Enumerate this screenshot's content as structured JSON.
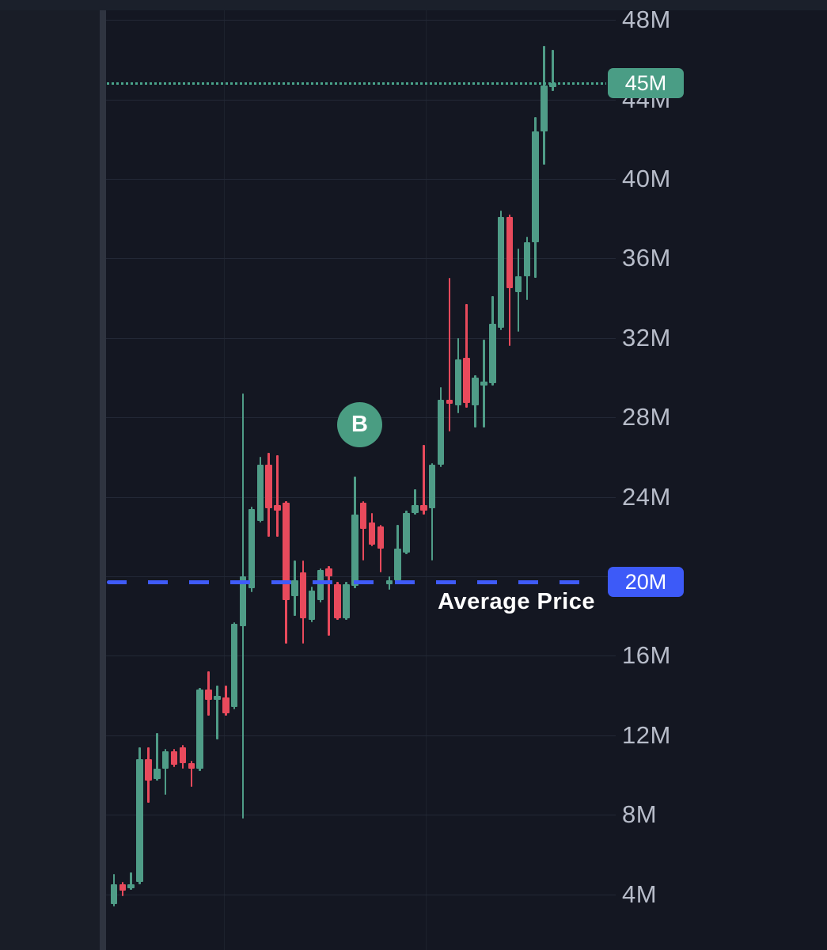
{
  "chart": {
    "colors": {
      "background": "#141722",
      "top_strip": "#1b202b",
      "axis_separator": "#2f3440",
      "grid": "#232836",
      "axis_text": "#b7bcc9",
      "up_candle": "#4f9c87",
      "down_candle": "#e84a5c",
      "target_line": "#4aa58c",
      "target_badge": "#4a9d85",
      "average_line": "#3f5bf9",
      "average_badge": "#3d5af8",
      "buy_marker": "#4a9d82"
    },
    "target_price": {
      "label": "45M",
      "value": 44.8,
      "line_style": "dotted"
    },
    "average_price": {
      "label": "20M",
      "value": 19.7,
      "caption": "Average Price",
      "line_style": "dashed"
    },
    "buy_marker": {
      "label": "B",
      "value": 27.6,
      "candle_index": 28.6
    }
  },
  "chart_data": {
    "type": "candlestick",
    "unit": "M",
    "ylim": [
      1.2,
      49.0
    ],
    "grid": "on",
    "legend": "none",
    "y_ticks": [
      {
        "label": "48M",
        "value": 48
      },
      {
        "label": "44M",
        "value": 44
      },
      {
        "label": "40M",
        "value": 40
      },
      {
        "label": "36M",
        "value": 36
      },
      {
        "label": "32M",
        "value": 32
      },
      {
        "label": "28M",
        "value": 28
      },
      {
        "label": "24M",
        "value": 24
      },
      {
        "label": "20M",
        "value": 20,
        "shown_as": "badge"
      },
      {
        "label": "16M",
        "value": 16
      },
      {
        "label": "12M",
        "value": 12
      },
      {
        "label": "8M",
        "value": 8
      },
      {
        "label": "4M",
        "value": 4
      }
    ],
    "vertical_grid_x": [
      283,
      538
    ],
    "annotations": [
      {
        "type": "hline",
        "value": 44.8,
        "label": "45M",
        "style": "dotted",
        "color": "#4aa58c"
      },
      {
        "type": "hline",
        "value": 19.7,
        "label": "20M",
        "text": "Average Price",
        "style": "dashed",
        "color": "#3f5bf9"
      },
      {
        "type": "marker",
        "label": "B",
        "value": 27.6,
        "color": "#4a9d82"
      }
    ],
    "candles_ohlc_millions": [
      [
        3.5,
        5.0,
        3.4,
        4.5
      ],
      [
        4.5,
        4.6,
        3.9,
        4.2
      ],
      [
        4.3,
        5.1,
        4.2,
        4.5
      ],
      [
        4.6,
        11.4,
        4.5,
        10.8
      ],
      [
        10.8,
        11.4,
        8.6,
        9.7
      ],
      [
        9.8,
        12.1,
        9.7,
        10.3
      ],
      [
        10.3,
        11.3,
        9.0,
        11.2
      ],
      [
        11.2,
        11.3,
        10.4,
        10.5
      ],
      [
        11.4,
        11.5,
        10.3,
        10.6
      ],
      [
        10.6,
        10.7,
        9.4,
        10.3
      ],
      [
        10.3,
        14.4,
        10.2,
        14.3
      ],
      [
        14.3,
        15.2,
        13.0,
        13.8
      ],
      [
        13.8,
        14.5,
        11.8,
        14.0
      ],
      [
        13.9,
        14.5,
        13.0,
        13.1
      ],
      [
        13.4,
        17.7,
        13.3,
        17.6
      ],
      [
        17.5,
        29.2,
        7.8,
        20.0
      ],
      [
        19.4,
        23.5,
        19.2,
        23.4
      ],
      [
        22.8,
        26.0,
        22.7,
        25.6
      ],
      [
        25.6,
        26.2,
        22.0,
        23.4
      ],
      [
        23.6,
        26.1,
        22.0,
        23.3
      ],
      [
        23.7,
        23.8,
        16.6,
        18.8
      ],
      [
        19.0,
        20.8,
        18.0,
        19.8
      ],
      [
        20.2,
        20.8,
        16.6,
        17.9
      ],
      [
        17.8,
        19.5,
        17.7,
        19.3
      ],
      [
        18.8,
        20.4,
        18.7,
        20.3
      ],
      [
        20.4,
        20.5,
        17.0,
        20.0
      ],
      [
        19.6,
        19.7,
        17.8,
        17.9
      ],
      [
        17.9,
        19.7,
        17.8,
        19.6
      ],
      [
        19.5,
        25.0,
        19.4,
        23.1
      ],
      [
        23.7,
        23.8,
        20.8,
        22.4
      ],
      [
        22.7,
        23.2,
        21.5,
        21.6
      ],
      [
        22.5,
        22.6,
        20.2,
        21.4
      ],
      [
        19.6,
        20.0,
        19.3,
        19.8
      ],
      [
        19.8,
        22.6,
        19.7,
        21.4
      ],
      [
        21.2,
        23.3,
        21.1,
        23.2
      ],
      [
        23.2,
        24.4,
        23.1,
        23.6
      ],
      [
        23.6,
        26.6,
        23.1,
        23.3
      ],
      [
        23.4,
        25.7,
        20.8,
        25.6
      ],
      [
        25.6,
        29.5,
        25.5,
        28.9
      ],
      [
        28.9,
        35.0,
        27.3,
        28.7
      ],
      [
        28.6,
        32.0,
        28.2,
        30.9
      ],
      [
        31.0,
        33.7,
        28.5,
        28.7
      ],
      [
        28.6,
        30.1,
        27.5,
        30.0
      ],
      [
        29.6,
        31.9,
        27.5,
        29.8
      ],
      [
        29.7,
        34.1,
        29.6,
        32.7
      ],
      [
        32.5,
        38.4,
        32.4,
        38.1
      ],
      [
        38.1,
        38.2,
        31.6,
        34.5
      ],
      [
        34.3,
        36.5,
        32.3,
        35.1
      ],
      [
        35.1,
        37.1,
        33.9,
        36.8
      ],
      [
        36.8,
        43.1,
        35.0,
        42.4
      ],
      [
        42.4,
        46.7,
        40.7,
        44.7
      ],
      [
        44.6,
        46.5,
        44.4,
        44.8
      ]
    ]
  }
}
